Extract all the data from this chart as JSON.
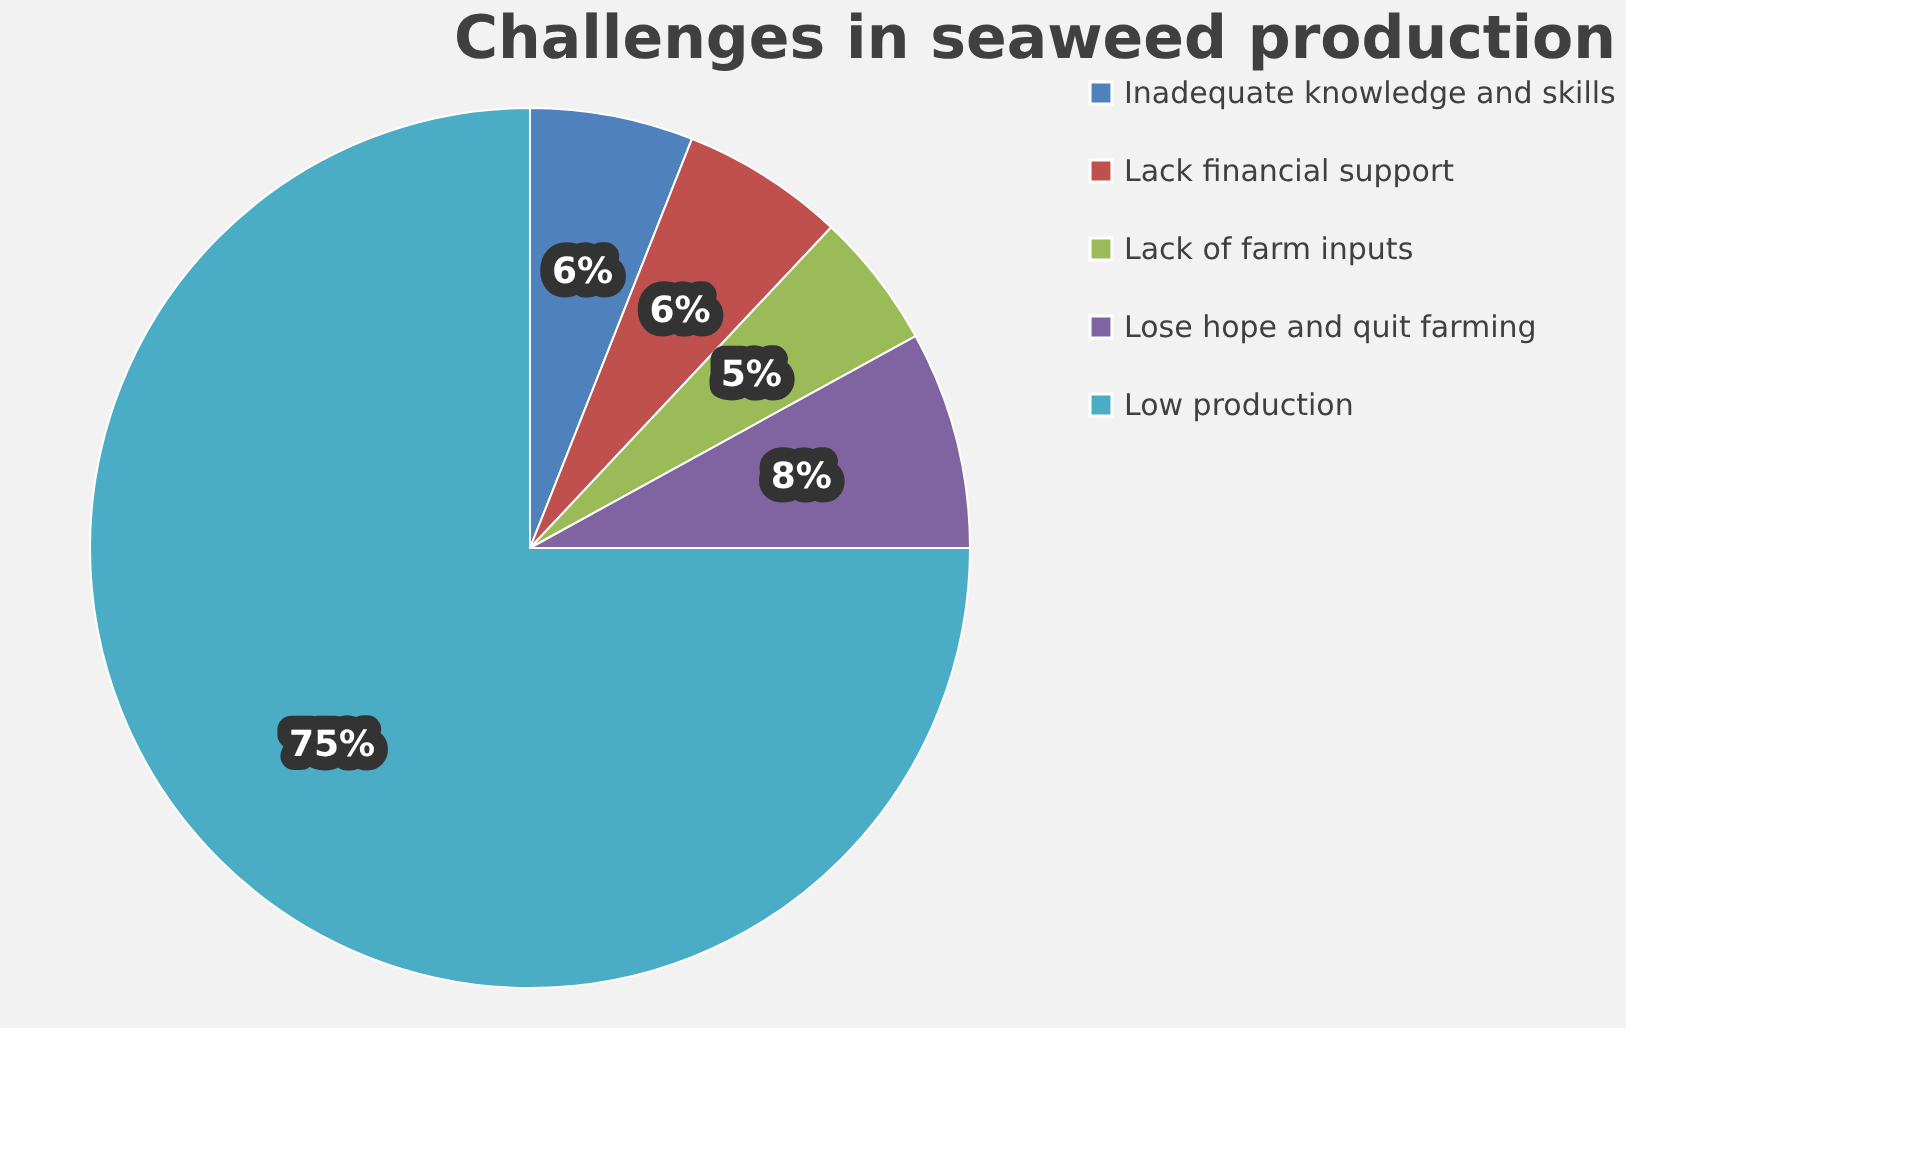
{
  "chart_data": {
    "type": "pie",
    "title": "Challenges in seaweed production",
    "categories": [
      "Inadequate knowledge and skills",
      "Lack financial support",
      "Lack of farm inputs",
      "Lose hope and quit farming",
      "Low production"
    ],
    "values": [
      6,
      6,
      5,
      8,
      75
    ],
    "colors": [
      "#4f81bd",
      "#c0504d",
      "#9bbb59",
      "#8064a2",
      "#4bacc6"
    ],
    "value_labels": [
      "6%",
      "6%",
      "5%",
      "8%",
      "75%"
    ],
    "legend": "right"
  }
}
